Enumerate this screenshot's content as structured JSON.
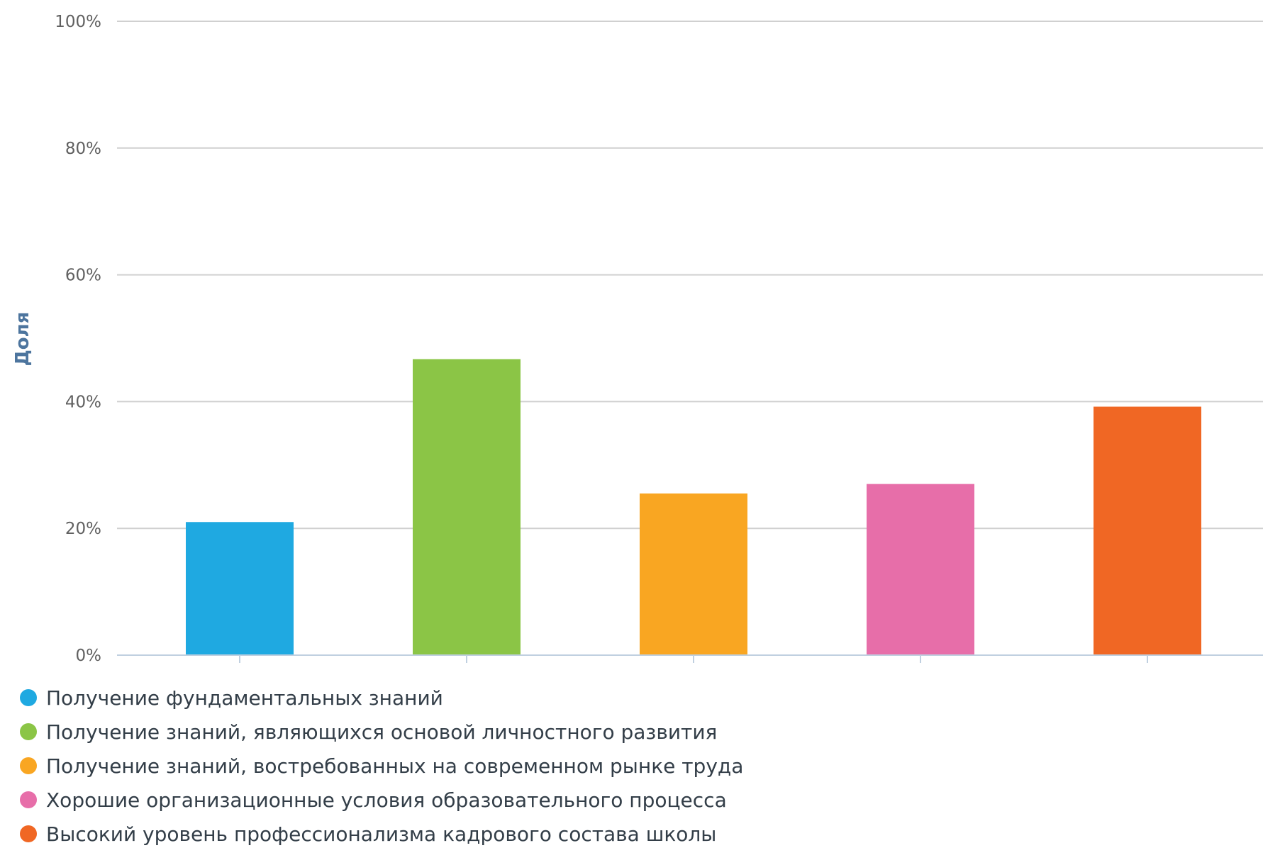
{
  "chart_data": {
    "type": "bar",
    "title": "",
    "xlabel": "",
    "ylabel": "Доля",
    "ylim": [
      0,
      100
    ],
    "y_ticks": [
      "0%",
      "20%",
      "40%",
      "60%",
      "80%",
      "100%"
    ],
    "grid": true,
    "legend_position": "bottom-left",
    "series": [
      {
        "name": "Получение фундаментальных знаний",
        "value": 21,
        "color": "#1fa9e1"
      },
      {
        "name": "Получение знаний, являющихся основой личностного развития",
        "value": 46.7,
        "color": "#8bc546"
      },
      {
        "name": "Получение знаний, востребованных на современном рынке труда",
        "value": 25.5,
        "color": "#f9a622"
      },
      {
        "name": "Хорошие организационные условия образовательного процесса",
        "value": 27,
        "color": "#e76ea9"
      },
      {
        "name": "Высокий уровень профессионализма кадрового состава школы",
        "value": 39.2,
        "color": "#f06724"
      }
    ]
  }
}
